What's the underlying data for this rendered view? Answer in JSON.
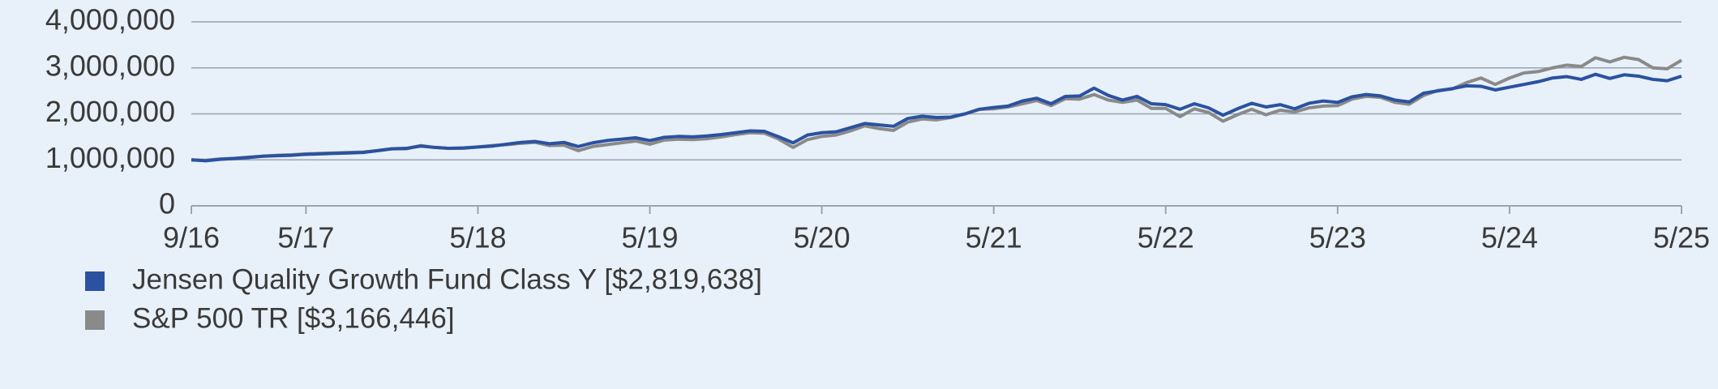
{
  "chart_data": {
    "type": "line",
    "categories": [
      "9/16",
      null,
      null,
      null,
      null,
      null,
      null,
      null,
      "5/17",
      null,
      null,
      null,
      null,
      null,
      null,
      null,
      null,
      null,
      null,
      null,
      "5/18",
      null,
      null,
      null,
      null,
      null,
      null,
      null,
      null,
      null,
      null,
      null,
      "5/19",
      null,
      null,
      null,
      null,
      null,
      null,
      null,
      null,
      null,
      null,
      null,
      "5/20",
      null,
      null,
      null,
      null,
      null,
      null,
      null,
      null,
      null,
      null,
      null,
      "5/21",
      null,
      null,
      null,
      null,
      null,
      null,
      null,
      null,
      null,
      null,
      null,
      "5/22",
      null,
      null,
      null,
      null,
      null,
      null,
      null,
      null,
      null,
      null,
      null,
      "5/23",
      null,
      null,
      null,
      null,
      null,
      null,
      null,
      null,
      null,
      null,
      null,
      "5/24",
      null,
      null,
      null,
      null,
      null,
      null,
      null,
      null,
      null,
      null,
      null,
      "5/25"
    ],
    "series": [
      {
        "name": "Jensen Quality Growth Fund Class Y [$2,819,638]",
        "color": "#2a52a0",
        "values": [
          1000000,
          980000,
          1010000,
          1030000,
          1050000,
          1080000,
          1090000,
          1100000,
          1120000,
          1130000,
          1140000,
          1150000,
          1160000,
          1200000,
          1240000,
          1250000,
          1300000,
          1270000,
          1250000,
          1260000,
          1280000,
          1300000,
          1340000,
          1380000,
          1400000,
          1350000,
          1380000,
          1290000,
          1370000,
          1420000,
          1450000,
          1480000,
          1420000,
          1490000,
          1510000,
          1500000,
          1520000,
          1550000,
          1590000,
          1630000,
          1620000,
          1500000,
          1370000,
          1540000,
          1590000,
          1610000,
          1700000,
          1790000,
          1760000,
          1730000,
          1900000,
          1950000,
          1920000,
          1930000,
          2000000,
          2100000,
          2140000,
          2170000,
          2280000,
          2340000,
          2220000,
          2380000,
          2390000,
          2560000,
          2400000,
          2300000,
          2380000,
          2220000,
          2200000,
          2100000,
          2220000,
          2130000,
          1970000,
          2110000,
          2230000,
          2150000,
          2200000,
          2110000,
          2230000,
          2280000,
          2250000,
          2370000,
          2420000,
          2390000,
          2300000,
          2260000,
          2450000,
          2500000,
          2550000,
          2610000,
          2600000,
          2520000,
          2580000,
          2640000,
          2700000,
          2780000,
          2810000,
          2750000,
          2860000,
          2770000,
          2850000,
          2820000,
          2750000,
          2720000,
          2819638
        ]
      },
      {
        "name": "S&P 500 TR [$3,166,446]",
        "color": "#8a8a8a",
        "values": [
          1000000,
          990000,
          1020000,
          1030000,
          1060000,
          1080000,
          1100000,
          1110000,
          1130000,
          1140000,
          1150000,
          1160000,
          1170000,
          1200000,
          1240000,
          1240000,
          1310000,
          1270000,
          1250000,
          1250000,
          1280000,
          1310000,
          1330000,
          1360000,
          1380000,
          1310000,
          1320000,
          1200000,
          1290000,
          1330000,
          1370000,
          1410000,
          1340000,
          1430000,
          1450000,
          1440000,
          1460000,
          1500000,
          1550000,
          1590000,
          1580000,
          1450000,
          1270000,
          1440000,
          1510000,
          1540000,
          1630000,
          1740000,
          1680000,
          1640000,
          1820000,
          1890000,
          1870000,
          1920000,
          2000000,
          2100000,
          2110000,
          2150000,
          2220000,
          2290000,
          2180000,
          2330000,
          2320000,
          2420000,
          2300000,
          2250000,
          2300000,
          2120000,
          2120000,
          1940000,
          2110000,
          2030000,
          1840000,
          1980000,
          2100000,
          1980000,
          2080000,
          2040000,
          2130000,
          2170000,
          2180000,
          2320000,
          2380000,
          2360000,
          2250000,
          2210000,
          2400000,
          2510000,
          2540000,
          2680000,
          2780000,
          2640000,
          2780000,
          2890000,
          2920000,
          3000000,
          3060000,
          3030000,
          3220000,
          3130000,
          3230000,
          3180000,
          3000000,
          2980000,
          3166446
        ]
      }
    ],
    "ylim": [
      0,
      4000000
    ],
    "yticks": [
      0,
      {
        "value": 1000000,
        "label": "1,000,000"
      },
      {
        "value": 2000000,
        "label": "2,000,000"
      },
      {
        "value": 3000000,
        "label": "3,000,000"
      },
      {
        "value": 4000000,
        "label": "4,000,000"
      }
    ],
    "grid": true
  }
}
